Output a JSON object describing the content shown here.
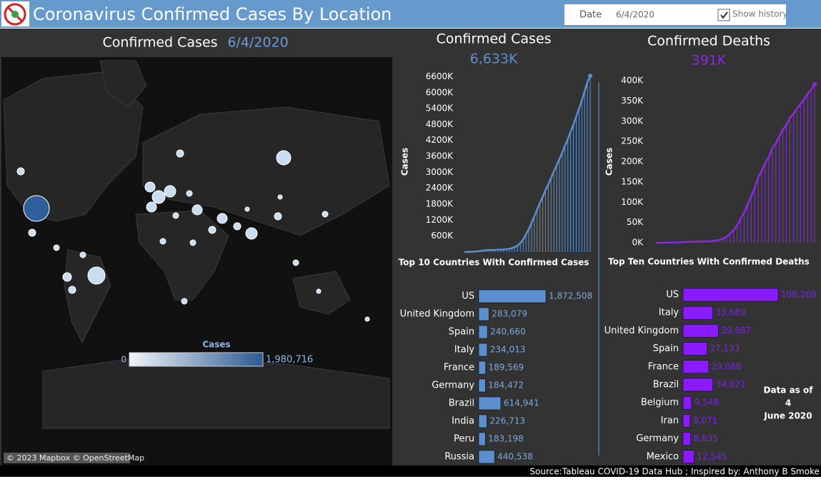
{
  "header": {
    "title": "Coronavirus Confirmed Cases By Location",
    "filter_label": "Date",
    "filter_value": "6/4/2020",
    "checkbox_label": "Show history"
  },
  "map": {
    "title": "Confirmed Cases",
    "date": "6/4/2020",
    "legend_title": "Cases",
    "legend_min": "0",
    "legend_max": "1,980,716",
    "attribution": "© 2023 Mapbox © OpenStreetMap"
  },
  "chart_data": [
    {
      "type": "line",
      "title": "Confirmed Cases",
      "total": "6,633K",
      "y_label": "Cases",
      "color": "#5b8fd0",
      "values": [
        500,
        2000,
        6000,
        10000,
        20000,
        31000,
        40000,
        60000,
        69000,
        75000,
        77000,
        80000,
        84000,
        89000,
        95000,
        106000,
        119000,
        146000,
        182000,
        243000,
        337000,
        470000,
        660000,
        857000,
        1095000,
        1346000,
        1601000,
        1846000,
        2076000,
        2330000,
        2550000,
        2790000,
        3040000,
        3270000,
        3500000,
        3750000,
        4010000,
        4250000,
        4530000,
        4800000,
        5100000,
        5400000,
        5700000,
        6060000,
        6400000,
        6633000
      ],
      "ylim": [
        0,
        6800000
      ],
      "yticks": [
        {
          "value": 600000,
          "label": "600K"
        },
        {
          "value": 1200000,
          "label": "1200K"
        },
        {
          "value": 1800000,
          "label": "1800K"
        },
        {
          "value": 2400000,
          "label": "2400K"
        },
        {
          "value": 3000000,
          "label": "3000K"
        },
        {
          "value": 3600000,
          "label": "3600K"
        },
        {
          "value": 4200000,
          "label": "4200K"
        },
        {
          "value": 4800000,
          "label": "4800K"
        },
        {
          "value": 5400000,
          "label": "5400K"
        },
        {
          "value": 6000000,
          "label": "6000K"
        },
        {
          "value": 6600000,
          "label": "6600K"
        }
      ]
    },
    {
      "type": "line",
      "title": "Confirmed Deaths",
      "total": "391K",
      "y_label": "Cases",
      "color": "#8a2be2",
      "values": [
        17,
        56,
        132,
        213,
        426,
        638,
        910,
        1370,
        1670,
        2000,
        2250,
        2700,
        2800,
        3000,
        3300,
        3500,
        4300,
        5400,
        7100,
        10000,
        14700,
        22000,
        31000,
        42000,
        59000,
        74000,
        95000,
        114000,
        135000,
        161000,
        177000,
        197000,
        211000,
        233000,
        245000,
        263000,
        279000,
        291000,
        308000,
        318000,
        331000,
        342000,
        354000,
        367000,
        378000,
        391000
      ],
      "ylim": [
        0,
        400000
      ],
      "yticks": [
        {
          "value": 0,
          "label": "0K"
        },
        {
          "value": 50000,
          "label": "50K"
        },
        {
          "value": 100000,
          "label": "100K"
        },
        {
          "value": 150000,
          "label": "150K"
        },
        {
          "value": 200000,
          "label": "200K"
        },
        {
          "value": 250000,
          "label": "250K"
        },
        {
          "value": 300000,
          "label": "300K"
        },
        {
          "value": 350000,
          "label": "350K"
        },
        {
          "value": 400000,
          "label": "400K"
        }
      ]
    },
    {
      "type": "barh",
      "title": "Top 10 Countries With Confirmed Cases",
      "color": "#5b8fd0",
      "label_color": "#7aa8dc",
      "categories": [
        "US",
        "United Kingdom",
        "Spain",
        "Italy",
        "France",
        "Germany",
        "Brazil",
        "India",
        "Peru",
        "Russia"
      ],
      "values": [
        1872508,
        283079,
        240660,
        234013,
        189569,
        184472,
        614941,
        226713,
        183198,
        440538
      ],
      "value_labels": [
        "1,872,508",
        "283,079",
        "240,660",
        "234,013",
        "189,569",
        "184,472",
        "614,941",
        "226,713",
        "183,198",
        "440,538"
      ]
    },
    {
      "type": "barh",
      "title": "Top Ten Countries With Confirmed Deaths",
      "color": "#8a1aff",
      "label_color": "#7a22e8",
      "categories": [
        "US",
        "Italy",
        "United Kingdom",
        "Spain",
        "France",
        "Brazil",
        "Belgium",
        "Iran",
        "Germany",
        "Mexico"
      ],
      "values": [
        108208,
        33689,
        39987,
        27133,
        29068,
        34021,
        9548,
        8071,
        8635,
        12545
      ],
      "value_labels": [
        "108,208",
        "33,689",
        "39,987",
        "27,133",
        "29,068",
        "34,021",
        "9,548",
        "8,071",
        "8,635",
        "12,545"
      ]
    }
  ],
  "note": {
    "line1": "Data as of",
    "line2": "4",
    "line3": "June 2020"
  },
  "footer": {
    "source": "Source:Tableau COVID-19 Data Hub ; Inspired by: Anthony B Smoke"
  }
}
